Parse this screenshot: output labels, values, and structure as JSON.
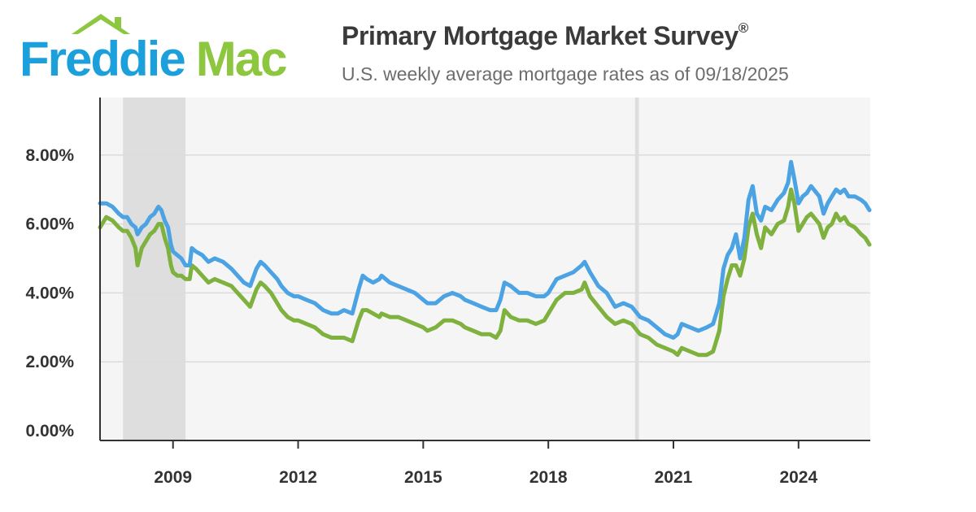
{
  "header": {
    "logo_freddie": "Freddie",
    "logo_mac": "Mac",
    "title": "Primary Mortgage Market Survey",
    "title_mark": "®",
    "subtitle": "U.S. weekly average mortgage rates as of 09/18/2025"
  },
  "colors": {
    "series_30yr": "#4BA3E3",
    "series_15yr": "#7FB13F",
    "logo_blue": "#1BA0DC",
    "logo_green": "#8DC63F",
    "plot_background": "#F5F5F5",
    "recession_shading": "#DEDEDE"
  },
  "chart_data": {
    "type": "line",
    "title": "",
    "xlabel": "",
    "ylabel": "",
    "xlim": [
      2007.25,
      2025.72
    ],
    "ylim": [
      0,
      10
    ],
    "x_ticks": [
      {
        "value": 2009,
        "label": "2009"
      },
      {
        "value": 2012,
        "label": "2012"
      },
      {
        "value": 2015,
        "label": "2015"
      },
      {
        "value": 2018,
        "label": "2018"
      },
      {
        "value": 2021,
        "label": "2021"
      },
      {
        "value": 2024,
        "label": "2024"
      }
    ],
    "y_ticks": [
      {
        "value": 0,
        "label": "0.00%"
      },
      {
        "value": 2,
        "label": "2.00%"
      },
      {
        "value": 4,
        "label": "4.00%"
      },
      {
        "value": 6,
        "label": "6.00%"
      },
      {
        "value": 8,
        "label": "8.00%"
      }
    ],
    "grid": true,
    "legend": "none",
    "shaded_periods": [
      {
        "start": 2007.8,
        "end": 2009.3
      },
      {
        "start": 2020.08,
        "end": 2020.17
      }
    ],
    "series": [
      {
        "key": "30yr",
        "x": [
          2007.25,
          2007.4,
          2007.55,
          2007.7,
          2007.8,
          2007.9,
          2008.0,
          2008.1,
          2008.15,
          2008.25,
          2008.35,
          2008.45,
          2008.55,
          2008.65,
          2008.72,
          2008.8,
          2008.88,
          2008.95,
          2009.0,
          2009.1,
          2009.2,
          2009.3,
          2009.4,
          2009.45,
          2009.55,
          2009.7,
          2009.85,
          2010.0,
          2010.2,
          2010.4,
          2010.55,
          2010.7,
          2010.85,
          2011.0,
          2011.1,
          2011.2,
          2011.35,
          2011.5,
          2011.6,
          2011.75,
          2011.9,
          2012.0,
          2012.2,
          2012.4,
          2012.6,
          2012.8,
          2012.95,
          2013.1,
          2013.3,
          2013.45,
          2013.55,
          2013.65,
          2013.8,
          2013.95,
          2014.0,
          2014.2,
          2014.4,
          2014.6,
          2014.8,
          2015.0,
          2015.1,
          2015.3,
          2015.5,
          2015.7,
          2015.9,
          2016.0,
          2016.2,
          2016.4,
          2016.6,
          2016.75,
          2016.85,
          2016.95,
          2017.1,
          2017.3,
          2017.5,
          2017.7,
          2017.9,
          2018.0,
          2018.2,
          2018.4,
          2018.6,
          2018.8,
          2018.87,
          2019.0,
          2019.2,
          2019.4,
          2019.6,
          2019.8,
          2020.0,
          2020.2,
          2020.4,
          2020.6,
          2020.8,
          2021.0,
          2021.1,
          2021.2,
          2021.4,
          2021.6,
          2021.8,
          2021.95,
          2022.0,
          2022.1,
          2022.2,
          2022.3,
          2022.4,
          2022.5,
          2022.6,
          2022.7,
          2022.8,
          2022.9,
          2023.0,
          2023.1,
          2023.2,
          2023.35,
          2023.5,
          2023.65,
          2023.75,
          2023.82,
          2023.9,
          2024.0,
          2024.1,
          2024.2,
          2024.3,
          2024.5,
          2024.6,
          2024.7,
          2024.8,
          2024.9,
          2025.0,
          2025.1,
          2025.2,
          2025.35,
          2025.5,
          2025.6,
          2025.7
        ],
        "values": [
          6.6,
          6.6,
          6.5,
          6.3,
          6.2,
          6.2,
          6.0,
          5.9,
          5.7,
          5.9,
          6.0,
          6.2,
          6.3,
          6.5,
          6.4,
          6.1,
          5.9,
          5.4,
          5.2,
          5.1,
          5.0,
          4.8,
          4.8,
          5.3,
          5.2,
          5.1,
          4.9,
          5.0,
          4.9,
          4.7,
          4.5,
          4.3,
          4.2,
          4.7,
          4.9,
          4.8,
          4.6,
          4.4,
          4.2,
          4.0,
          3.9,
          3.9,
          3.8,
          3.7,
          3.5,
          3.4,
          3.4,
          3.5,
          3.4,
          4.1,
          4.5,
          4.4,
          4.3,
          4.4,
          4.5,
          4.3,
          4.2,
          4.1,
          4.0,
          3.8,
          3.7,
          3.7,
          3.9,
          4.0,
          3.9,
          3.8,
          3.7,
          3.6,
          3.5,
          3.5,
          3.8,
          4.3,
          4.2,
          4.0,
          4.0,
          3.9,
          3.9,
          4.0,
          4.4,
          4.5,
          4.6,
          4.8,
          4.9,
          4.6,
          4.2,
          4.0,
          3.6,
          3.7,
          3.6,
          3.3,
          3.2,
          3.0,
          2.8,
          2.7,
          2.8,
          3.1,
          3.0,
          2.9,
          3.0,
          3.1,
          3.3,
          3.7,
          4.7,
          5.1,
          5.3,
          5.7,
          5.0,
          5.6,
          6.7,
          7.1,
          6.3,
          6.1,
          6.5,
          6.4,
          6.7,
          6.9,
          7.2,
          7.8,
          7.3,
          6.6,
          6.8,
          6.9,
          7.1,
          6.8,
          6.3,
          6.6,
          6.8,
          7.0,
          6.9,
          7.0,
          6.8,
          6.8,
          6.7,
          6.6,
          6.4
        ]
      },
      {
        "key": "15yr",
        "x": [
          2007.25,
          2007.4,
          2007.55,
          2007.7,
          2007.8,
          2007.9,
          2008.0,
          2008.1,
          2008.15,
          2008.25,
          2008.35,
          2008.45,
          2008.55,
          2008.65,
          2008.72,
          2008.8,
          2008.88,
          2008.95,
          2009.0,
          2009.1,
          2009.2,
          2009.3,
          2009.4,
          2009.45,
          2009.55,
          2009.7,
          2009.85,
          2010.0,
          2010.2,
          2010.4,
          2010.55,
          2010.7,
          2010.85,
          2011.0,
          2011.1,
          2011.2,
          2011.35,
          2011.5,
          2011.6,
          2011.75,
          2011.9,
          2012.0,
          2012.2,
          2012.4,
          2012.6,
          2012.8,
          2012.95,
          2013.1,
          2013.3,
          2013.45,
          2013.55,
          2013.65,
          2013.8,
          2013.95,
          2014.0,
          2014.2,
          2014.4,
          2014.6,
          2014.8,
          2015.0,
          2015.1,
          2015.3,
          2015.5,
          2015.7,
          2015.9,
          2016.0,
          2016.2,
          2016.4,
          2016.6,
          2016.75,
          2016.85,
          2016.95,
          2017.1,
          2017.3,
          2017.5,
          2017.7,
          2017.9,
          2018.0,
          2018.2,
          2018.4,
          2018.6,
          2018.8,
          2018.87,
          2019.0,
          2019.2,
          2019.4,
          2019.6,
          2019.8,
          2020.0,
          2020.2,
          2020.4,
          2020.6,
          2020.8,
          2021.0,
          2021.1,
          2021.2,
          2021.4,
          2021.6,
          2021.8,
          2021.95,
          2022.0,
          2022.1,
          2022.2,
          2022.3,
          2022.4,
          2022.5,
          2022.6,
          2022.7,
          2022.8,
          2022.9,
          2023.0,
          2023.1,
          2023.2,
          2023.35,
          2023.5,
          2023.65,
          2023.75,
          2023.82,
          2023.9,
          2024.0,
          2024.1,
          2024.2,
          2024.3,
          2024.5,
          2024.6,
          2024.7,
          2024.8,
          2024.9,
          2025.0,
          2025.1,
          2025.2,
          2025.35,
          2025.5,
          2025.6,
          2025.7
        ],
        "values": [
          5.9,
          6.2,
          6.1,
          5.9,
          5.8,
          5.8,
          5.6,
          5.3,
          4.8,
          5.3,
          5.5,
          5.7,
          5.8,
          6.0,
          6.0,
          5.6,
          5.3,
          4.8,
          4.6,
          4.5,
          4.5,
          4.4,
          4.4,
          4.8,
          4.7,
          4.5,
          4.3,
          4.4,
          4.3,
          4.2,
          4.0,
          3.8,
          3.6,
          4.1,
          4.3,
          4.2,
          4.0,
          3.7,
          3.5,
          3.3,
          3.2,
          3.2,
          3.1,
          3.0,
          2.8,
          2.7,
          2.7,
          2.7,
          2.6,
          3.2,
          3.5,
          3.5,
          3.4,
          3.3,
          3.4,
          3.3,
          3.3,
          3.2,
          3.1,
          3.0,
          2.9,
          3.0,
          3.2,
          3.2,
          3.1,
          3.0,
          2.9,
          2.8,
          2.8,
          2.7,
          2.9,
          3.5,
          3.3,
          3.2,
          3.2,
          3.1,
          3.2,
          3.4,
          3.8,
          4.0,
          4.0,
          4.1,
          4.3,
          3.9,
          3.6,
          3.3,
          3.1,
          3.2,
          3.1,
          2.8,
          2.7,
          2.5,
          2.4,
          2.3,
          2.2,
          2.4,
          2.3,
          2.2,
          2.2,
          2.3,
          2.5,
          2.9,
          3.9,
          4.4,
          4.8,
          4.8,
          4.5,
          5.0,
          5.9,
          6.3,
          5.7,
          5.3,
          5.9,
          5.7,
          6.0,
          6.1,
          6.5,
          7.0,
          6.6,
          5.8,
          6.0,
          6.2,
          6.3,
          6.0,
          5.6,
          5.9,
          6.0,
          6.3,
          6.1,
          6.2,
          6.0,
          5.9,
          5.7,
          5.6,
          5.4
        ]
      }
    ]
  }
}
